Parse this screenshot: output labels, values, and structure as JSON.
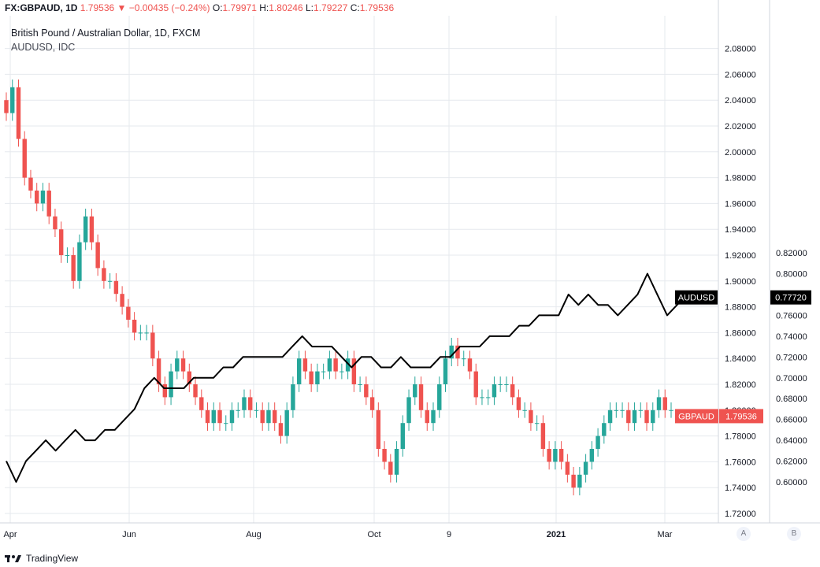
{
  "header": {
    "symbol": "FX:GBPAUD, 1D",
    "last": "1.79536",
    "change_arrow": "▼",
    "change": "−0.00435 (−0.24%)",
    "o_label": "O:",
    "o_value": "1.79971",
    "h_label": "H:",
    "h_value": "1.80246",
    "l_label": "L:",
    "l_value": "1.79227",
    "c_label": "C:",
    "c_value": "1.79536"
  },
  "legend": {
    "main": "British Pound / Australian Dollar, 1D, FXCM",
    "compare": "AUDUSD, IDC"
  },
  "footer": {
    "brand": "TradingView"
  },
  "axis_buttons": {
    "a": "A",
    "b": "B"
  },
  "colors": {
    "up": "#26a69a",
    "down": "#ef5350",
    "line": "#000000",
    "grid": "#e6e9ee"
  },
  "chart_data": {
    "type": "candlestick+line",
    "x_ticks": [
      "Apr",
      "Jun",
      "Aug",
      "Oct",
      "9",
      "2021",
      "Mar"
    ],
    "y_right_inner": {
      "label": "GBPAUD",
      "ticks": [
        "1.72000",
        "1.74000",
        "1.76000",
        "1.78000",
        "1.80000",
        "1.82000",
        "1.84000",
        "1.86000",
        "1.88000",
        "1.90000",
        "1.92000",
        "1.94000",
        "1.96000",
        "1.98000",
        "2.00000",
        "2.02000",
        "2.04000",
        "2.06000",
        "2.08000"
      ],
      "range": [
        1.71,
        2.09
      ]
    },
    "y_right_outer": {
      "label": "AUDUSD",
      "ticks": [
        "0.60000",
        "0.62000",
        "0.64000",
        "0.66000",
        "0.68000",
        "0.70000",
        "0.72000",
        "0.74000",
        "0.76000",
        "0.78000",
        "0.80000",
        "0.82000"
      ],
      "range": [
        0.595,
        0.825
      ]
    },
    "series": [
      {
        "name": "GBPAUD",
        "last_label": "GBPAUD",
        "last_value": "1.79536",
        "close": [
          2.03,
          2.05,
          2.01,
          1.98,
          1.97,
          1.96,
          1.97,
          1.95,
          1.94,
          1.92,
          1.92,
          1.9,
          1.93,
          1.95,
          1.93,
          1.91,
          1.9,
          1.9,
          1.89,
          1.88,
          1.87,
          1.86,
          1.86,
          1.86,
          1.84,
          1.82,
          1.81,
          1.83,
          1.84,
          1.83,
          1.82,
          1.81,
          1.8,
          1.79,
          1.8,
          1.79,
          1.79,
          1.8,
          1.8,
          1.81,
          1.8,
          1.8,
          1.79,
          1.8,
          1.79,
          1.78,
          1.8,
          1.82,
          1.84,
          1.83,
          1.82,
          1.83,
          1.83,
          1.84,
          1.83,
          1.83,
          1.84,
          1.82,
          1.82,
          1.81,
          1.8,
          1.77,
          1.76,
          1.75,
          1.77,
          1.79,
          1.81,
          1.82,
          1.8,
          1.79,
          1.8,
          1.82,
          1.84,
          1.85,
          1.84,
          1.84,
          1.83,
          1.81,
          1.81,
          1.81,
          1.82,
          1.82,
          1.82,
          1.81,
          1.8,
          1.8,
          1.79,
          1.79,
          1.77,
          1.76,
          1.77,
          1.76,
          1.75,
          1.74,
          1.75,
          1.76,
          1.77,
          1.78,
          1.79,
          1.8,
          1.8,
          1.8,
          1.79,
          1.8,
          1.8,
          1.79,
          1.8,
          1.81,
          1.8,
          1.8
        ]
      },
      {
        "name": "AUDUSD",
        "last_label": "AUDUSD",
        "last_value": "0.77720",
        "values": [
          0.62,
          0.6,
          0.62,
          0.63,
          0.64,
          0.63,
          0.64,
          0.65,
          0.64,
          0.64,
          0.65,
          0.65,
          0.66,
          0.67,
          0.69,
          0.7,
          0.69,
          0.69,
          0.69,
          0.7,
          0.7,
          0.7,
          0.71,
          0.71,
          0.72,
          0.72,
          0.72,
          0.72,
          0.72,
          0.73,
          0.74,
          0.73,
          0.73,
          0.73,
          0.72,
          0.71,
          0.72,
          0.72,
          0.71,
          0.71,
          0.72,
          0.71,
          0.71,
          0.71,
          0.72,
          0.72,
          0.73,
          0.73,
          0.73,
          0.74,
          0.74,
          0.74,
          0.75,
          0.75,
          0.76,
          0.76,
          0.76,
          0.78,
          0.77,
          0.78,
          0.77,
          0.77,
          0.76,
          0.77,
          0.78,
          0.8,
          0.78,
          0.76,
          0.77,
          0.78
        ]
      }
    ],
    "grid": true
  }
}
